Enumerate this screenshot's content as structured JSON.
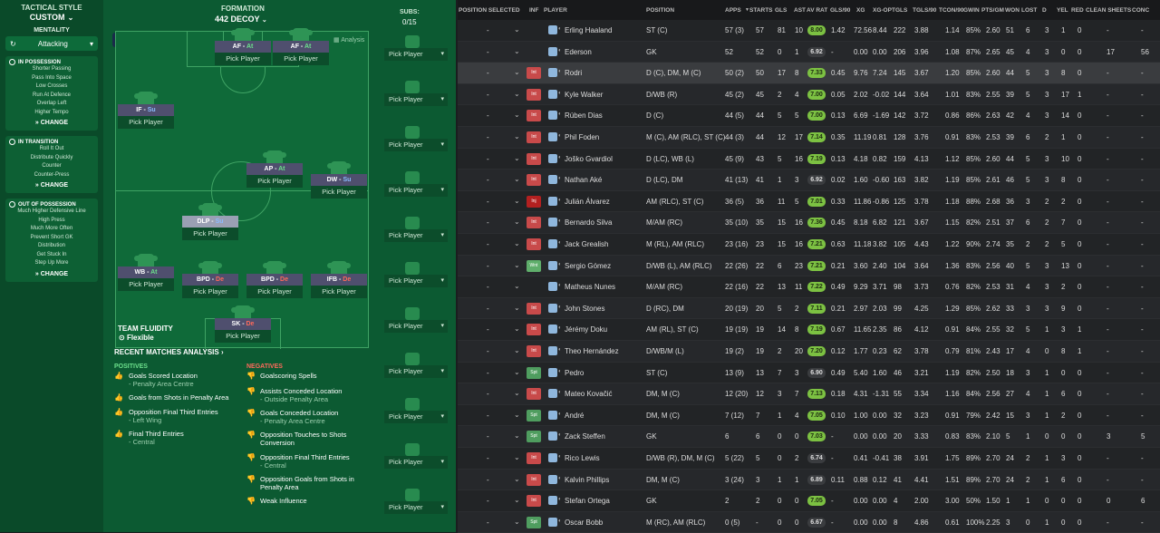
{
  "tactics": {
    "style_label": "TACTICAL STYLE",
    "style_value": "CUSTOM",
    "mentality_label": "MENTALITY",
    "mentality_value": "Attacking",
    "in_possession": {
      "title": "IN POSSESSION",
      "items": [
        "Shorter Passing",
        "Pass Into Space",
        "Low Crosses",
        "Run At Defence",
        "Overlap Left",
        "Higher Tempo"
      ],
      "change": "CHANGE"
    },
    "in_transition": {
      "title": "IN TRANSITION",
      "items": [
        "Roll It Out",
        "Distribute Quickly",
        "Counter",
        "Counter-Press"
      ],
      "change": "CHANGE"
    },
    "out_possession": {
      "title": "OUT OF POSSESSION",
      "items": [
        "Much Higher Defensive Line",
        "High Press",
        "Much More Often",
        "Prevent Short GK",
        "Distribution",
        "Get Stuck In",
        "Step Up More"
      ],
      "change": "CHANGE"
    }
  },
  "formation": {
    "label": "FORMATION",
    "value": "442 DECOY",
    "analysis": "Analysis",
    "fluidity_label": "TEAM FLUIDITY",
    "fluidity_value": "Flexible"
  },
  "pick_label": "Pick Player",
  "positions": [
    {
      "role": "AF",
      "duty": "At",
      "color": "green"
    },
    {
      "role": "AF",
      "duty": "At",
      "color": "green"
    },
    {
      "role": "IF",
      "duty": "Su",
      "color": "blue"
    },
    {
      "role": "AP",
      "duty": "At",
      "color": "green"
    },
    {
      "role": "DW",
      "duty": "Su",
      "color": "blue"
    },
    {
      "role": "DLP",
      "duty": "Su",
      "color": "blue"
    },
    {
      "role": "WB",
      "duty": "At",
      "color": "green"
    },
    {
      "role": "BPD",
      "duty": "De",
      "color": "red"
    },
    {
      "role": "BPD",
      "duty": "De",
      "color": "red"
    },
    {
      "role": "IFB",
      "duty": "De",
      "color": "red"
    },
    {
      "role": "SK",
      "duty": "De",
      "color": "red"
    }
  ],
  "subs": {
    "label": "SUBS:",
    "count": "0/15"
  },
  "recent": {
    "title": "RECENT MATCHES ANALYSIS ›",
    "positives_label": "POSITIVES",
    "negatives_label": "NEGATIVES",
    "positives": [
      {
        "text": "Goals Scored Location",
        "sub": "- Penalty Area Centre"
      },
      {
        "text": "Goals from Shots in Penalty Area",
        "sub": ""
      },
      {
        "text": "Opposition Final Third Entries",
        "sub": "- Left Wing"
      },
      {
        "text": "Final Third Entries",
        "sub": "- Central"
      }
    ],
    "negatives": [
      {
        "text": "Goalscoring Spells",
        "sub": ""
      },
      {
        "text": "Assists Conceded Location",
        "sub": "- Outside Penalty Area"
      },
      {
        "text": "Goals Conceded Location",
        "sub": "- Penalty Area Centre"
      },
      {
        "text": "Opposition Touches to Shots Conversion",
        "sub": ""
      },
      {
        "text": "Opposition Final Third Entries",
        "sub": "- Central"
      },
      {
        "text": "Opposition Goals from Shots in Penalty Area",
        "sub": ""
      },
      {
        "text": "Weak Influence",
        "sub": ""
      }
    ]
  },
  "table": {
    "headers": [
      "POSITION SELECTED",
      "INF",
      "PLAYER",
      "POSITION",
      "APPS",
      "STARTS",
      "GLS",
      "AST",
      "AV RAT",
      "GLS/90",
      "XG",
      "XG-OP",
      "TGLS",
      "TGLS/90",
      "TCON/90",
      "GWIN",
      "PTS/GM",
      "WON",
      "LOST",
      "D",
      "YEL",
      "RED",
      "CLEAN SHEETS",
      "CONC"
    ],
    "rows": [
      {
        "inf": "",
        "player": "Erling Haaland",
        "pos": "ST (C)",
        "apps": "57 (3)",
        "starts": "57",
        "gls": "81",
        "ast": "10",
        "avr": "8.00",
        "g90": "1.42",
        "xg": "72.56",
        "xgop": "8.44",
        "tgls": "222",
        "tg90": "3.88",
        "tc90": "1.14",
        "gwin": "85%",
        "pts": "2.60",
        "won": "51",
        "lost": "6",
        "d": "3",
        "yel": "1",
        "red": "0",
        "cs": "-",
        "conc": "-"
      },
      {
        "inf": "",
        "player": "Ederson",
        "pos": "GK",
        "apps": "52",
        "starts": "52",
        "gls": "0",
        "ast": "1",
        "avr": "6.92",
        "g90": "-",
        "xg": "0.00",
        "xgop": "0.00",
        "tgls": "206",
        "tg90": "3.96",
        "tc90": "1.08",
        "gwin": "87%",
        "pts": "2.65",
        "won": "45",
        "lost": "4",
        "d": "3",
        "yel": "0",
        "red": "0",
        "cs": "17",
        "conc": "56"
      },
      {
        "inf": "Int",
        "player": "Rodri",
        "pos": "D (C), DM, M (C)",
        "apps": "50 (2)",
        "starts": "50",
        "gls": "17",
        "ast": "8",
        "avr": "7.33",
        "g90": "0.45",
        "xg": "9.76",
        "xgop": "7.24",
        "tgls": "145",
        "tg90": "3.67",
        "tc90": "1.20",
        "gwin": "85%",
        "pts": "2.60",
        "won": "44",
        "lost": "5",
        "d": "3",
        "yel": "8",
        "red": "0",
        "cs": "-",
        "conc": "-"
      },
      {
        "inf": "Int",
        "player": "Kyle Walker",
        "pos": "D/WB (R)",
        "apps": "45 (2)",
        "starts": "45",
        "gls": "2",
        "ast": "4",
        "avr": "7.00",
        "g90": "0.05",
        "xg": "2.02",
        "xgop": "-0.02",
        "tgls": "144",
        "tg90": "3.64",
        "tc90": "1.01",
        "gwin": "83%",
        "pts": "2.55",
        "won": "39",
        "lost": "5",
        "d": "3",
        "yel": "17",
        "red": "1",
        "cs": "-",
        "conc": "-"
      },
      {
        "inf": "Int",
        "player": "Rúben Dias",
        "pos": "D (C)",
        "apps": "44 (5)",
        "starts": "44",
        "gls": "5",
        "ast": "5",
        "avr": "7.00",
        "g90": "0.13",
        "xg": "6.69",
        "xgop": "-1.69",
        "tgls": "142",
        "tg90": "3.72",
        "tc90": "0.86",
        "gwin": "86%",
        "pts": "2.63",
        "won": "42",
        "lost": "4",
        "d": "3",
        "yel": "14",
        "red": "0",
        "cs": "-",
        "conc": "-"
      },
      {
        "inf": "Int",
        "player": "Phil Foden",
        "pos": "M (C), AM (RLC), ST (C)",
        "apps": "44 (3)",
        "starts": "44",
        "gls": "12",
        "ast": "17",
        "avr": "7.14",
        "g90": "0.35",
        "xg": "11.19",
        "xgop": "0.81",
        "tgls": "128",
        "tg90": "3.76",
        "tc90": "0.91",
        "gwin": "83%",
        "pts": "2.53",
        "won": "39",
        "lost": "6",
        "d": "2",
        "yel": "1",
        "red": "0",
        "cs": "-",
        "conc": "-"
      },
      {
        "inf": "Int",
        "player": "Joško Gvardiol",
        "pos": "D (LC), WB (L)",
        "apps": "45 (9)",
        "starts": "43",
        "gls": "5",
        "ast": "16",
        "avr": "7.19",
        "g90": "0.13",
        "xg": "4.18",
        "xgop": "0.82",
        "tgls": "159",
        "tg90": "4.13",
        "tc90": "1.12",
        "gwin": "85%",
        "pts": "2.60",
        "won": "44",
        "lost": "5",
        "d": "3",
        "yel": "10",
        "red": "0",
        "cs": "-",
        "conc": "-"
      },
      {
        "inf": "Int",
        "player": "Nathan Aké",
        "pos": "D (LC), DM",
        "apps": "41 (13)",
        "starts": "41",
        "gls": "1",
        "ast": "3",
        "avr": "6.92",
        "g90": "0.02",
        "xg": "1.60",
        "xgop": "-0.60",
        "tgls": "163",
        "tg90": "3.82",
        "tc90": "1.19",
        "gwin": "85%",
        "pts": "2.61",
        "won": "46",
        "lost": "5",
        "d": "3",
        "yel": "8",
        "red": "0",
        "cs": "-",
        "conc": "-"
      },
      {
        "inf": "Inj",
        "player": "Julián Álvarez",
        "pos": "AM (RLC), ST (C)",
        "apps": "36 (5)",
        "starts": "36",
        "gls": "11",
        "ast": "5",
        "avr": "7.01",
        "g90": "0.33",
        "xg": "11.86",
        "xgop": "-0.86",
        "tgls": "125",
        "tg90": "3.78",
        "tc90": "1.18",
        "gwin": "88%",
        "pts": "2.68",
        "won": "36",
        "lost": "3",
        "d": "2",
        "yel": "2",
        "red": "0",
        "cs": "-",
        "conc": "-"
      },
      {
        "inf": "Int",
        "player": "Bernardo Silva",
        "pos": "M/AM (RC)",
        "apps": "35 (10)",
        "starts": "35",
        "gls": "15",
        "ast": "16",
        "avr": "7.36",
        "g90": "0.45",
        "xg": "8.18",
        "xgop": "6.82",
        "tgls": "121",
        "tg90": "3.67",
        "tc90": "1.15",
        "gwin": "82%",
        "pts": "2.51",
        "won": "37",
        "lost": "6",
        "d": "2",
        "yel": "7",
        "red": "0",
        "cs": "-",
        "conc": "-"
      },
      {
        "inf": "Int",
        "player": "Jack Grealish",
        "pos": "M (RL), AM (RLC)",
        "apps": "23 (16)",
        "starts": "23",
        "gls": "15",
        "ast": "16",
        "avr": "7.21",
        "g90": "0.63",
        "xg": "11.18",
        "xgop": "3.82",
        "tgls": "105",
        "tg90": "4.43",
        "tc90": "1.22",
        "gwin": "90%",
        "pts": "2.74",
        "won": "35",
        "lost": "2",
        "d": "2",
        "yel": "5",
        "red": "0",
        "cs": "-",
        "conc": "-"
      },
      {
        "inf": "Wnt",
        "player": "Sergio Gómez",
        "pos": "D/WB (L), AM (RLC)",
        "apps": "22 (26)",
        "starts": "22",
        "gls": "6",
        "ast": "23",
        "avr": "7.21",
        "g90": "0.21",
        "xg": "3.60",
        "xgop": "2.40",
        "tgls": "104",
        "tg90": "3.64",
        "tc90": "1.36",
        "gwin": "83%",
        "pts": "2.56",
        "won": "40",
        "lost": "5",
        "d": "3",
        "yel": "13",
        "red": "0",
        "cs": "-",
        "conc": "-"
      },
      {
        "inf": "",
        "player": "Matheus Nunes",
        "pos": "M/AM (RC)",
        "apps": "22 (16)",
        "starts": "22",
        "gls": "13",
        "ast": "11",
        "avr": "7.22",
        "g90": "0.49",
        "xg": "9.29",
        "xgop": "3.71",
        "tgls": "98",
        "tg90": "3.73",
        "tc90": "0.76",
        "gwin": "82%",
        "pts": "2.53",
        "won": "31",
        "lost": "4",
        "d": "3",
        "yel": "2",
        "red": "0",
        "cs": "-",
        "conc": "-"
      },
      {
        "inf": "Int",
        "player": "John Stones",
        "pos": "D (RC), DM",
        "apps": "20 (19)",
        "starts": "20",
        "gls": "5",
        "ast": "2",
        "avr": "7.11",
        "g90": "0.21",
        "xg": "2.97",
        "xgop": "2.03",
        "tgls": "99",
        "tg90": "4.25",
        "tc90": "1.29",
        "gwin": "85%",
        "pts": "2.62",
        "won": "33",
        "lost": "3",
        "d": "3",
        "yel": "9",
        "red": "0",
        "cs": "-",
        "conc": "-"
      },
      {
        "inf": "Int",
        "player": "Jérémy Doku",
        "pos": "AM (RL), ST (C)",
        "apps": "19 (19)",
        "starts": "19",
        "gls": "14",
        "ast": "8",
        "avr": "7.19",
        "g90": "0.67",
        "xg": "11.65",
        "xgop": "2.35",
        "tgls": "86",
        "tg90": "4.12",
        "tc90": "0.91",
        "gwin": "84%",
        "pts": "2.55",
        "won": "32",
        "lost": "5",
        "d": "1",
        "yel": "3",
        "red": "1",
        "cs": "-",
        "conc": "-"
      },
      {
        "inf": "Int",
        "player": "Theo Hernández",
        "pos": "D/WB/M (L)",
        "apps": "19 (2)",
        "starts": "19",
        "gls": "2",
        "ast": "20",
        "avr": "7.20",
        "g90": "0.12",
        "xg": "1.77",
        "xgop": "0.23",
        "tgls": "62",
        "tg90": "3.78",
        "tc90": "0.79",
        "gwin": "81%",
        "pts": "2.43",
        "won": "17",
        "lost": "4",
        "d": "0",
        "yel": "8",
        "red": "1",
        "cs": "-",
        "conc": "-"
      },
      {
        "inf": "Spt",
        "player": "Pedro",
        "pos": "ST (C)",
        "apps": "13 (9)",
        "starts": "13",
        "gls": "7",
        "ast": "3",
        "avr": "6.90",
        "g90": "0.49",
        "xg": "5.40",
        "xgop": "1.60",
        "tgls": "46",
        "tg90": "3.21",
        "tc90": "1.19",
        "gwin": "82%",
        "pts": "2.50",
        "won": "18",
        "lost": "3",
        "d": "1",
        "yel": "0",
        "red": "0",
        "cs": "-",
        "conc": "-"
      },
      {
        "inf": "Int",
        "player": "Mateo Kovačić",
        "pos": "DM, M (C)",
        "apps": "12 (20)",
        "starts": "12",
        "gls": "3",
        "ast": "7",
        "avr": "7.13",
        "g90": "0.18",
        "xg": "4.31",
        "xgop": "-1.31",
        "tgls": "55",
        "tg90": "3.34",
        "tc90": "1.16",
        "gwin": "84%",
        "pts": "2.56",
        "won": "27",
        "lost": "4",
        "d": "1",
        "yel": "6",
        "red": "0",
        "cs": "-",
        "conc": "-"
      },
      {
        "inf": "Spt",
        "player": "André",
        "pos": "DM, M (C)",
        "apps": "7 (12)",
        "starts": "7",
        "gls": "1",
        "ast": "4",
        "avr": "7.05",
        "g90": "0.10",
        "xg": "1.00",
        "xgop": "0.00",
        "tgls": "32",
        "tg90": "3.23",
        "tc90": "0.91",
        "gwin": "79%",
        "pts": "2.42",
        "won": "15",
        "lost": "3",
        "d": "1",
        "yel": "2",
        "red": "0",
        "cs": "-",
        "conc": "-"
      },
      {
        "inf": "Spt",
        "player": "Zack Steffen",
        "pos": "GK",
        "apps": "6",
        "starts": "6",
        "gls": "0",
        "ast": "0",
        "avr": "7.03",
        "g90": "-",
        "xg": "0.00",
        "xgop": "0.00",
        "tgls": "20",
        "tg90": "3.33",
        "tc90": "0.83",
        "gwin": "83%",
        "pts": "2.10",
        "won": "5",
        "lost": "1",
        "d": "0",
        "yel": "0",
        "red": "0",
        "cs": "3",
        "conc": "5"
      },
      {
        "inf": "Int",
        "player": "Rico Lewis",
        "pos": "D/WB (R), DM, M (C)",
        "apps": "5 (22)",
        "starts": "5",
        "gls": "0",
        "ast": "2",
        "avr": "6.74",
        "g90": "-",
        "xg": "0.41",
        "xgop": "-0.41",
        "tgls": "38",
        "tg90": "3.91",
        "tc90": "1.75",
        "gwin": "89%",
        "pts": "2.70",
        "won": "24",
        "lost": "2",
        "d": "1",
        "yel": "3",
        "red": "0",
        "cs": "-",
        "conc": "-"
      },
      {
        "inf": "Int",
        "player": "Kalvin Phillips",
        "pos": "DM, M (C)",
        "apps": "3 (24)",
        "starts": "3",
        "gls": "1",
        "ast": "1",
        "avr": "6.89",
        "g90": "0.11",
        "xg": "0.88",
        "xgop": "0.12",
        "tgls": "41",
        "tg90": "4.41",
        "tc90": "1.51",
        "gwin": "89%",
        "pts": "2.70",
        "won": "24",
        "lost": "2",
        "d": "1",
        "yel": "6",
        "red": "0",
        "cs": "-",
        "conc": "-"
      },
      {
        "inf": "Int",
        "player": "Stefan Ortega",
        "pos": "GK",
        "apps": "2",
        "starts": "2",
        "gls": "0",
        "ast": "0",
        "avr": "7.05",
        "g90": "-",
        "xg": "0.00",
        "xgop": "0.00",
        "tgls": "4",
        "tg90": "2.00",
        "tc90": "3.00",
        "gwin": "50%",
        "pts": "1.50",
        "won": "1",
        "lost": "1",
        "d": "0",
        "yel": "0",
        "red": "0",
        "cs": "0",
        "conc": "6"
      },
      {
        "inf": "Spt",
        "player": "Oscar Bobb",
        "pos": "M (RC), AM (RLC)",
        "apps": "0 (5)",
        "starts": "-",
        "gls": "0",
        "ast": "0",
        "avr": "6.67",
        "g90": "-",
        "xg": "0.00",
        "xgop": "0.00",
        "tgls": "8",
        "tg90": "4.86",
        "tc90": "0.61",
        "gwin": "100%",
        "pts": "2.25",
        "won": "3",
        "lost": "0",
        "d": "1",
        "yel": "0",
        "red": "0",
        "cs": "-",
        "conc": "-"
      }
    ]
  },
  "colors": {
    "pitch": "#0c5a32",
    "sidebar": "#0a4a29",
    "rating_green": "#7cc142",
    "int_badge": "#c84a4a"
  }
}
